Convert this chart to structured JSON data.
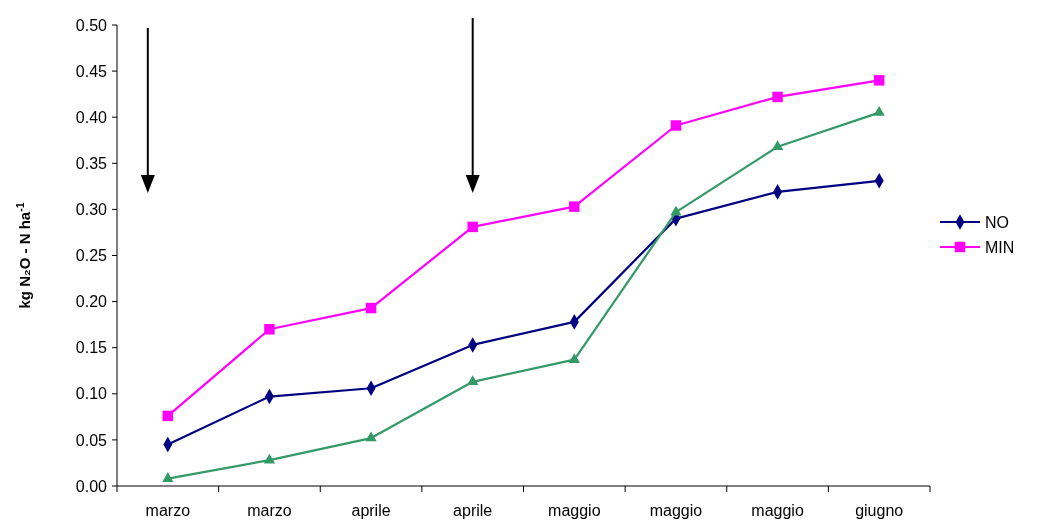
{
  "chart_data": {
    "type": "line",
    "ylabel": "kg N₂O - N ha$^{-1}$",
    "categories": [
      "marzo",
      "marzo",
      "aprile",
      "aprile",
      "maggio",
      "maggio",
      "maggio",
      "giugno"
    ],
    "ylim": [
      0,
      0.5
    ],
    "yticks": [
      {
        "value": 0,
        "label": "0.00"
      },
      {
        "value": 0.05,
        "label": "0.05"
      },
      {
        "value": 0.1,
        "label": "0.10"
      },
      {
        "value": 0.15,
        "label": "0.15"
      },
      {
        "value": 0.2,
        "label": "0.20"
      },
      {
        "value": 0.25,
        "label": "0.25"
      },
      {
        "value": 0.3,
        "label": "0.30"
      },
      {
        "value": 0.35,
        "label": "0.35"
      },
      {
        "value": 0.4,
        "label": "0.40"
      },
      {
        "value": 0.45,
        "label": "0.45"
      },
      {
        "value": 0.5,
        "label": "0.50"
      }
    ],
    "legend": "right",
    "series": [
      {
        "name": "NO",
        "color": "#000080",
        "marker": "diamond",
        "values": [
          0.045,
          0.097,
          0.106,
          0.153,
          0.178,
          0.29,
          0.319,
          0.331
        ]
      },
      {
        "name": "MIN",
        "color": "#ff00ff",
        "marker": "square",
        "values": [
          0.076,
          0.17,
          0.193,
          0.281,
          0.303,
          0.391,
          0.422,
          0.44
        ]
      },
      {
        "color": "#339966",
        "marker": "triangle",
        "values": [
          0.008,
          0.028,
          0.052,
          0.113,
          0.137,
          0.297,
          0.368,
          0.405
        ]
      }
    ]
  }
}
